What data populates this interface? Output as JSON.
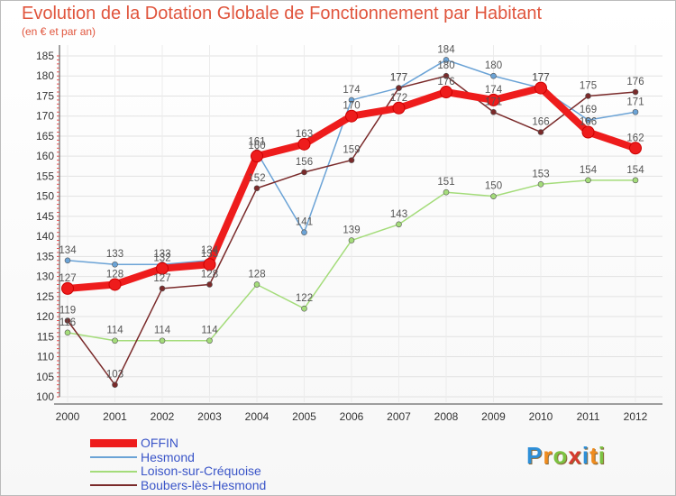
{
  "title": "Evolution de la Dotation Globale de Fonctionnement par Habitant",
  "subtitle": "(en € et par an)",
  "brand": {
    "letters": [
      "P",
      "r",
      "o",
      "x",
      "i",
      "t",
      "i"
    ],
    "colors": [
      "#2e8fd8",
      "#f08c1e",
      "#7cc242",
      "#d63a2e",
      "#2e8fd8",
      "#f08c1e",
      "#7cc242"
    ]
  },
  "chart_data": {
    "type": "line",
    "title": "Evolution de la Dotation Globale de Fonctionnement par Habitant",
    "ylabel": "(en € et par an)",
    "xlabel": "",
    "x": [
      "2000",
      "2001",
      "2002",
      "2003",
      "2004",
      "2005",
      "2006",
      "2007",
      "2008",
      "2009",
      "2010",
      "2011",
      "2012"
    ],
    "ylim": [
      100,
      185
    ],
    "yticks": [
      100,
      105,
      110,
      115,
      120,
      125,
      130,
      135,
      140,
      145,
      150,
      155,
      160,
      165,
      170,
      175,
      180,
      185
    ],
    "series": [
      {
        "name": "OFFIN",
        "color": "#ee1c1c",
        "values": [
          127,
          128,
          132,
          133,
          160,
          163,
          170,
          172,
          176,
          174,
          177,
          166,
          162
        ]
      },
      {
        "name": "Hesmond",
        "color": "#6ba3d6",
        "values": [
          134,
          133,
          133,
          134,
          161,
          141,
          174,
          177,
          184,
          180,
          177,
          169,
          171
        ]
      },
      {
        "name": "Loison-sur-Créquoise",
        "color": "#a4dc7a",
        "values": [
          116,
          114,
          114,
          114,
          128,
          122,
          139,
          143,
          151,
          150,
          153,
          154,
          154
        ]
      },
      {
        "name": "Boubers-lès-Hesmond",
        "color": "#7a2a2a",
        "values": [
          119,
          103,
          127,
          128,
          152,
          156,
          159,
          177,
          180,
          171,
          166,
          175,
          176
        ]
      }
    ]
  }
}
